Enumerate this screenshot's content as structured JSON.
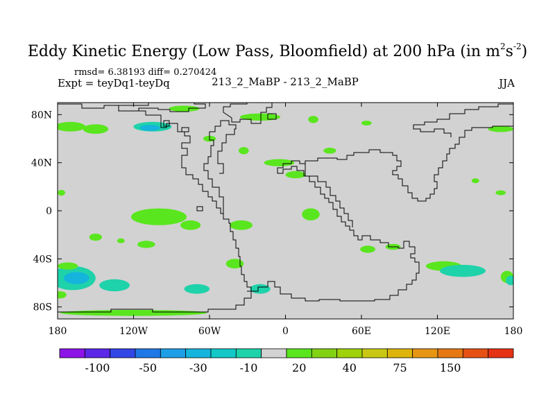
{
  "title": {
    "main": "Eddy Kinetic Energy (Low Pass, Bloomfield) at 200 hPa (in m",
    "sup1": "2",
    "mid": "s",
    "sup2": "-2",
    "close": ")"
  },
  "stats": "rmsd= 6.38193 diff= 0.270424",
  "left_string": "Expt = teyDq1-teyDq",
  "center_string": "213_2_MaBP - 213_2_MaBP",
  "right_string": "JJA",
  "colors": {
    "background_field": "#d2d2d2",
    "coastline": "#000000"
  },
  "chart_data": {
    "type": "contour_map",
    "projection": "cylindrical-equidistant",
    "title": "Eddy Kinetic Energy (Low Pass, Bloomfield) at 200 hPa (in m2s-2)",
    "season": "JJA",
    "lon_range": [
      -180,
      180
    ],
    "lat_range": [
      -90,
      90
    ],
    "lon_ticks": [
      {
        "value": -180,
        "label": "180"
      },
      {
        "value": -120,
        "label": "120W"
      },
      {
        "value": -60,
        "label": "60W"
      },
      {
        "value": 0,
        "label": "0"
      },
      {
        "value": 60,
        "label": "60E"
      },
      {
        "value": 120,
        "label": "120E"
      },
      {
        "value": 180,
        "label": "180"
      }
    ],
    "lat_ticks": [
      {
        "value": 80,
        "label": "80N"
      },
      {
        "value": 40,
        "label": "40N"
      },
      {
        "value": 0,
        "label": "0"
      },
      {
        "value": -40,
        "label": "40S"
      },
      {
        "value": -80,
        "label": "80S"
      }
    ],
    "colorbar": {
      "colors": [
        "#8c14e6",
        "#5a28e6",
        "#3246e6",
        "#1e78e6",
        "#1e9ee6",
        "#14b4dc",
        "#14c8c8",
        "#1ed2aa",
        "#d2d2d2",
        "#5ae61e",
        "#82d214",
        "#a0d20a",
        "#c8c814",
        "#dcb40a",
        "#e69614",
        "#e67814",
        "#e65014",
        "#e63214"
      ],
      "labels": [
        "-100",
        "-50",
        "-30",
        "-10",
        "20",
        "40",
        "75",
        "150"
      ]
    },
    "regions": [
      {
        "id": "n-pac-1",
        "lon": -170,
        "lat": 70,
        "rx": 12,
        "ry": 4,
        "value": 15
      },
      {
        "id": "n-pac-2",
        "lon": -150,
        "lat": 68,
        "rx": 10,
        "ry": 4,
        "value": 15
      },
      {
        "id": "n-amer-blob",
        "lon": -105,
        "lat": 70,
        "rx": 15,
        "ry": 4,
        "value": -10
      },
      {
        "id": "n-amer-core",
        "lon": -107,
        "lat": 69,
        "rx": 8,
        "ry": 2.5,
        "value": -30
      },
      {
        "id": "arctic-1",
        "lon": -80,
        "lat": 85,
        "rx": 12,
        "ry": 2.5,
        "value": 15
      },
      {
        "id": "arctic-2",
        "lon": -20,
        "lat": 78,
        "rx": 16,
        "ry": 3,
        "value": 15
      },
      {
        "id": "europe-1",
        "lon": 22,
        "lat": 76,
        "rx": 4,
        "ry": 3,
        "value": 15
      },
      {
        "id": "russia-1",
        "lon": 64,
        "lat": 73,
        "rx": 4,
        "ry": 2,
        "value": 15
      },
      {
        "id": "far-east-1",
        "lon": 170,
        "lat": 68,
        "rx": 10,
        "ry": 2.5,
        "value": 15
      },
      {
        "id": "atl-1",
        "lon": -60,
        "lat": 60,
        "rx": 5,
        "ry": 2.5,
        "value": 15
      },
      {
        "id": "atl-2",
        "lon": -33,
        "lat": 50,
        "rx": 4,
        "ry": 3,
        "value": 15
      },
      {
        "id": "atl-3",
        "lon": -5,
        "lat": 40,
        "rx": 12,
        "ry": 3,
        "value": 15
      },
      {
        "id": "atl-4",
        "lon": 35,
        "lat": 50,
        "rx": 5,
        "ry": 2.5,
        "value": 15
      },
      {
        "id": "med-1",
        "lon": 8,
        "lat": 30,
        "rx": 8,
        "ry": 3,
        "value": 15
      },
      {
        "id": "asia-1",
        "lon": 150,
        "lat": 25,
        "rx": 3,
        "ry": 2,
        "value": 15
      },
      {
        "id": "pac-west-1",
        "lon": 170,
        "lat": 15,
        "rx": 4,
        "ry": 2,
        "value": 15
      },
      {
        "id": "n-pac-west",
        "lon": -177,
        "lat": 15,
        "rx": 3,
        "ry": 2.5,
        "value": 15
      },
      {
        "id": "trop-pac-1",
        "lon": -100,
        "lat": -5,
        "rx": 22,
        "ry": 7,
        "value": 15
      },
      {
        "id": "trop-pac-2",
        "lon": -75,
        "lat": -12,
        "rx": 8,
        "ry": 4,
        "value": 15
      },
      {
        "id": "trop-atl-1",
        "lon": -35,
        "lat": -12,
        "rx": 9,
        "ry": 4,
        "value": 15
      },
      {
        "id": "africa-1",
        "lon": 20,
        "lat": -3,
        "rx": 7,
        "ry": 5,
        "value": 15
      },
      {
        "id": "e-pac-1",
        "lon": -150,
        "lat": -22,
        "rx": 5,
        "ry": 3,
        "value": 15
      },
      {
        "id": "e-pac-2",
        "lon": -130,
        "lat": -25,
        "rx": 3,
        "ry": 2,
        "value": 15
      },
      {
        "id": "s-pac-1",
        "lon": -110,
        "lat": -28,
        "rx": 7,
        "ry": 3,
        "value": 15
      },
      {
        "id": "s-atl-1",
        "lon": -40,
        "lat": -44,
        "rx": 7,
        "ry": 4,
        "value": 15
      },
      {
        "id": "s-ind-1",
        "lon": 65,
        "lat": -32,
        "rx": 6,
        "ry": 3,
        "value": 15
      },
      {
        "id": "s-ind-2",
        "lon": 85,
        "lat": -30,
        "rx": 6,
        "ry": 2.5,
        "value": 15
      },
      {
        "id": "s-ind-3",
        "lon": 125,
        "lat": -46,
        "rx": 14,
        "ry": 4,
        "value": 15
      },
      {
        "id": "s-pac-storm",
        "lon": -168,
        "lat": -56,
        "rx": 18,
        "ry": 10,
        "value": -10
      },
      {
        "id": "s-pac-storm-core",
        "lon": -165,
        "lat": -56,
        "rx": 10,
        "ry": 5,
        "value": -30
      },
      {
        "id": "s-pac-green",
        "lon": -172,
        "lat": -46,
        "rx": 8,
        "ry": 3,
        "value": 15
      },
      {
        "id": "s-pac-green-2",
        "lon": -178,
        "lat": -70,
        "rx": 5,
        "ry": 3,
        "value": 15
      },
      {
        "id": "s-ocean-1",
        "lon": -135,
        "lat": -62,
        "rx": 12,
        "ry": 5,
        "value": -10
      },
      {
        "id": "s-ocean-2",
        "lon": -70,
        "lat": -65,
        "rx": 10,
        "ry": 4,
        "value": -10
      },
      {
        "id": "s-ocean-3",
        "lon": -20,
        "lat": -65,
        "rx": 8,
        "ry": 4,
        "value": -10
      },
      {
        "id": "s-ind-storm",
        "lon": 140,
        "lat": -50,
        "rx": 18,
        "ry": 5,
        "value": -10
      },
      {
        "id": "s-ind-green-2",
        "lon": 175,
        "lat": -55,
        "rx": 5,
        "ry": 5,
        "value": 15
      },
      {
        "id": "s-ind-storm-2",
        "lon": 178,
        "lat": -58,
        "rx": 4,
        "ry": 4,
        "value": -10
      },
      {
        "id": "antarctic-green",
        "lon": -120,
        "lat": -85,
        "rx": 58,
        "ry": 2.5,
        "value": 15
      }
    ]
  }
}
